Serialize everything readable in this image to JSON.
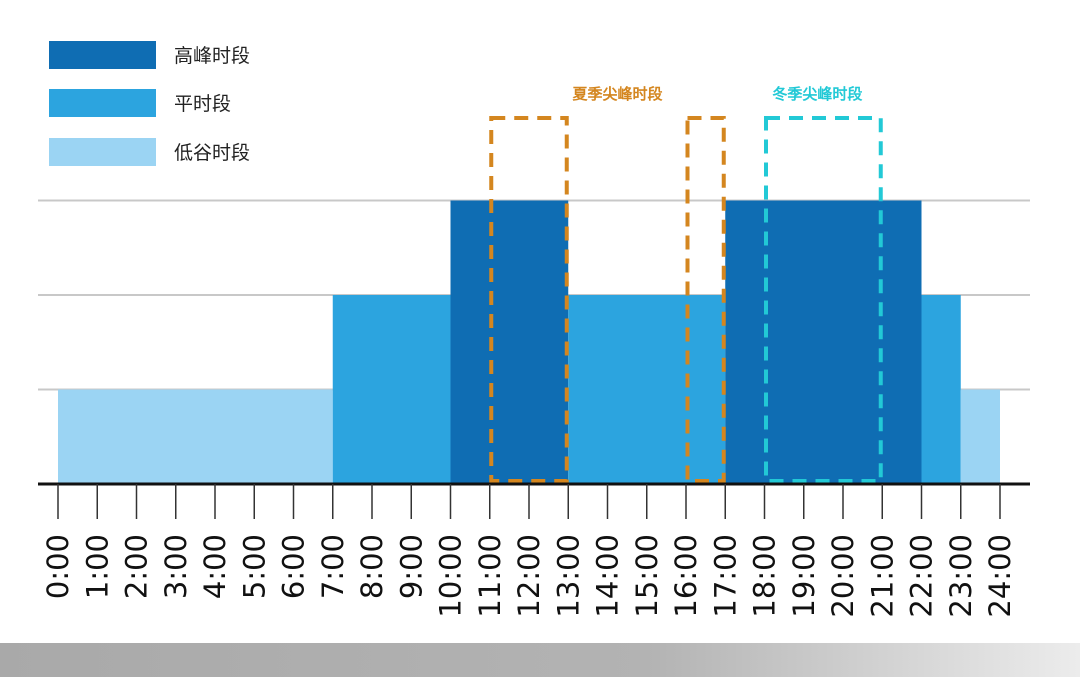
{
  "chart_data": {
    "type": "step-bar",
    "title": "",
    "xlabel": "",
    "ylabel": "",
    "x_ticks": [
      "0:00",
      "1:00",
      "2:00",
      "3:00",
      "4:00",
      "5:00",
      "6:00",
      "7:00",
      "8:00",
      "9:00",
      "10:00",
      "11:00",
      "12:00",
      "13:00",
      "14:00",
      "15:00",
      "16:00",
      "17:00",
      "18:00",
      "19:00",
      "20:00",
      "21:00",
      "22:00",
      "23:00",
      "24:00"
    ],
    "xlim": [
      0,
      24
    ],
    "ylim": [
      0,
      3
    ],
    "grid_levels": [
      1,
      2,
      3
    ],
    "legend": {
      "placement": "top-left",
      "items": [
        {
          "key": "peak",
          "label": "高峰时段",
          "color": "#0f6db3"
        },
        {
          "key": "flat",
          "label": "平时段",
          "color": "#2ca4df"
        },
        {
          "key": "valley",
          "label": "低谷时段",
          "color": "#9bd4f3"
        }
      ]
    },
    "segments": [
      {
        "start": 0,
        "end": 7,
        "level": 1,
        "period": "valley"
      },
      {
        "start": 7,
        "end": 10,
        "level": 2,
        "period": "flat"
      },
      {
        "start": 10,
        "end": 13,
        "level": 3,
        "period": "peak"
      },
      {
        "start": 13,
        "end": 17,
        "level": 2,
        "period": "flat"
      },
      {
        "start": 17,
        "end": 22,
        "level": 3,
        "period": "peak"
      },
      {
        "start": 22,
        "end": 23,
        "level": 2,
        "period": "flat"
      },
      {
        "start": 23,
        "end": 24,
        "level": 1,
        "period": "valley"
      }
    ],
    "annotations": [
      {
        "label": "夏季尖峰时段",
        "color": "#d4861f",
        "ranges": [
          [
            11,
            13
          ],
          [
            16,
            17
          ]
        ]
      },
      {
        "label": "冬季尖峰时段",
        "color": "#22c9d6",
        "ranges": [
          [
            18,
            21
          ]
        ]
      }
    ]
  }
}
